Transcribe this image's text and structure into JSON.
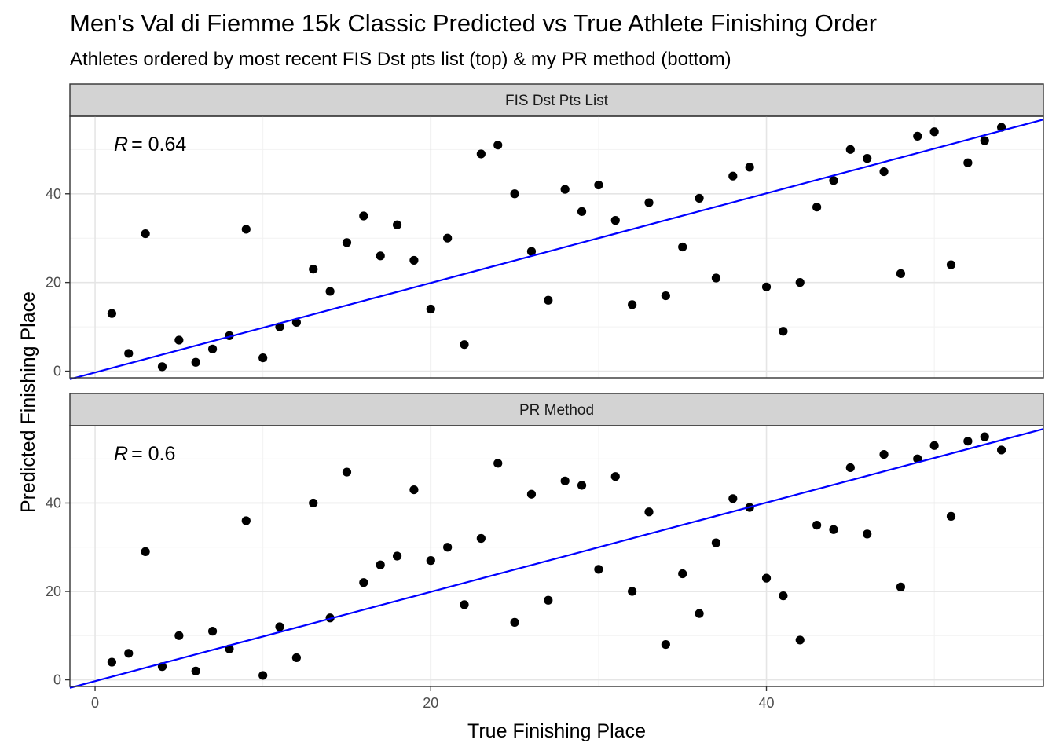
{
  "title": "Men's Val di Fiemme 15k Classic Predicted vs True Athlete Finishing Order",
  "subtitle": "Athletes ordered by most recent FIS Dst pts list (top) & my PR method (bottom)",
  "chart_data": {
    "type": "scatter",
    "xlabel": "True Finishing Place",
    "ylabel": "Predicted Finishing Place",
    "xlim": [
      -1.5,
      56.5
    ],
    "x_ticks": [
      0,
      20,
      40
    ],
    "y_ticks": [
      0,
      20,
      40
    ],
    "grid": true,
    "fit_line_color": "#0000ff",
    "point_color": "#000000",
    "panels": [
      {
        "strip": "FIS Dst Pts List",
        "r_symbol": "R",
        "r_value": "= 0.64",
        "ylim": [
          -1.5,
          57.5
        ],
        "fit": {
          "intercept": -0.3,
          "slope": 1.01
        },
        "x": [
          1,
          2,
          3,
          4,
          5,
          6,
          7,
          8,
          9,
          10,
          11,
          12,
          13,
          14,
          15,
          16,
          17,
          18,
          19,
          20,
          21,
          22,
          23,
          24,
          25,
          26,
          27,
          28,
          29,
          30,
          31,
          32,
          33,
          34,
          35,
          36,
          37,
          38,
          39,
          40,
          41,
          42,
          43,
          44,
          45,
          46,
          47,
          48,
          49,
          50,
          51,
          52,
          53,
          54
        ],
        "y": [
          13,
          4,
          31,
          1,
          7,
          2,
          5,
          8,
          32,
          3,
          10,
          11,
          23,
          18,
          29,
          35,
          26,
          33,
          25,
          14,
          30,
          6,
          49,
          51,
          40,
          27,
          16,
          41,
          36,
          42,
          34,
          15,
          38,
          17,
          28,
          39,
          21,
          44,
          46,
          19,
          9,
          20,
          37,
          43,
          50,
          48,
          45,
          22,
          53,
          54,
          24,
          47,
          52,
          55
        ]
      },
      {
        "strip": "PR Method",
        "r_symbol": "R",
        "r_value": "= 0.6",
        "ylim": [
          -1.5,
          57.5
        ],
        "fit": {
          "intercept": -0.3,
          "slope": 1.01
        },
        "x": [
          1,
          2,
          3,
          4,
          5,
          6,
          7,
          8,
          9,
          10,
          11,
          12,
          13,
          14,
          15,
          16,
          17,
          18,
          19,
          20,
          21,
          22,
          23,
          24,
          25,
          26,
          27,
          28,
          29,
          30,
          31,
          32,
          33,
          34,
          35,
          36,
          37,
          38,
          39,
          40,
          41,
          42,
          43,
          44,
          45,
          46,
          47,
          48,
          49,
          50,
          51,
          52,
          53,
          54
        ],
        "y": [
          4,
          6,
          29,
          3,
          10,
          2,
          11,
          7,
          36,
          1,
          12,
          5,
          40,
          14,
          47,
          22,
          26,
          28,
          43,
          27,
          30,
          17,
          32,
          49,
          13,
          42,
          18,
          45,
          44,
          25,
          46,
          20,
          38,
          8,
          24,
          15,
          31,
          41,
          39,
          23,
          19,
          9,
          35,
          34,
          48,
          33,
          51,
          21,
          50,
          53,
          37,
          54,
          55,
          52
        ]
      }
    ]
  }
}
